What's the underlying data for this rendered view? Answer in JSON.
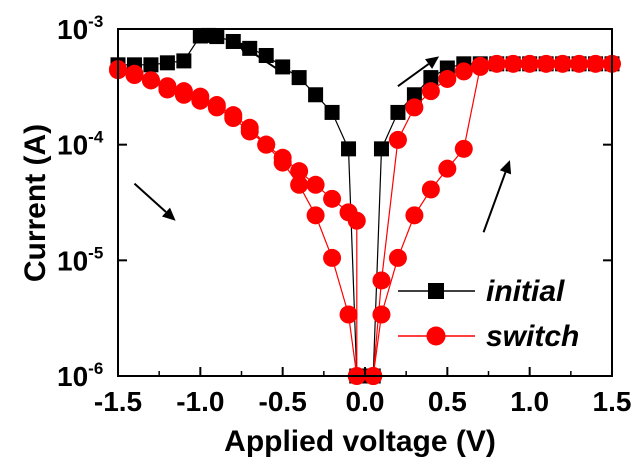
{
  "chart_data": {
    "type": "scatter",
    "xlabel": "Applied voltage (V)",
    "ylabel": "Current (A)",
    "xlim": [
      -1.5,
      1.5
    ],
    "ylim": [
      1e-06,
      0.001
    ],
    "y_scale": "log",
    "x_ticks": [
      "-1.5",
      "-1.0",
      "-0.5",
      "0.0",
      "0.5",
      "1.0",
      "1.5"
    ],
    "y_ticks": [
      {
        "base": "10",
        "exp": "-3"
      },
      {
        "base": "10",
        "exp": "-4"
      },
      {
        "base": "10",
        "exp": "-5"
      },
      {
        "base": "10",
        "exp": "-6"
      }
    ],
    "grid": false,
    "legend_position": "bottom-right",
    "series": [
      {
        "name": "initial",
        "color": "#000000",
        "marker": "square",
        "x": [
          -1.5,
          -1.4,
          -1.3,
          -1.2,
          -1.1,
          -1.0,
          -0.95,
          -0.9,
          -0.8,
          -0.7,
          -0.6,
          -0.5,
          -0.4,
          -0.3,
          -0.2,
          -0.1,
          -0.05,
          0.0,
          0.0,
          0.05,
          0.1,
          0.2,
          0.3,
          0.4,
          0.5,
          0.6,
          0.7,
          0.8,
          0.9,
          1.0,
          1.1,
          1.2,
          1.3,
          1.4,
          1.5
        ],
        "y": [
          0.00049,
          0.00049,
          0.00049,
          0.00051,
          0.00053,
          0.00087,
          0.00088,
          0.00086,
          0.00078,
          0.00068,
          0.00059,
          0.00047,
          0.00038,
          0.00027,
          0.00019,
          9.2e-05,
          1e-06,
          1e-06,
          1e-06,
          1e-06,
          9.2e-05,
          0.00019,
          0.00027,
          0.00038,
          0.00046,
          0.0005,
          0.0005,
          0.0005,
          0.0005,
          0.0005,
          0.0005,
          0.0005,
          0.0005,
          0.0005,
          0.0005
        ]
      },
      {
        "name": "switch",
        "color": "#ff0000",
        "marker": "circle",
        "x": [
          -1.5,
          -1.4,
          -1.3,
          -1.2,
          -1.1,
          -1.0,
          -0.9,
          -0.8,
          -0.7,
          -0.6,
          -0.5,
          -0.4,
          -0.3,
          -0.2,
          -0.1,
          -0.05,
          -0.05,
          -0.1,
          -0.2,
          -0.3,
          -0.4,
          -0.5,
          -0.6,
          -0.7,
          -0.8,
          -0.9,
          -1.0,
          -1.1,
          -1.2,
          -1.3,
          -1.4,
          -1.5
        ],
        "y": [
          0.00045,
          0.00041,
          0.00036,
          0.0003,
          0.00027,
          0.00024,
          0.00021,
          0.00017,
          0.00013,
          0.0001,
          7.7e-05,
          5.9e-05,
          4.5e-05,
          3.4e-05,
          2.6e-05,
          2.2e-05,
          1e-06,
          3.4e-06,
          1.05e-05,
          2.45e-05,
          4.5e-05,
          7e-05,
          0.0001,
          0.00014,
          0.00018,
          0.00022,
          0.00026,
          0.00029,
          0.00032,
          0.00036,
          0.0004,
          0.00044
        ]
      },
      {
        "name": "",
        "color": "#ff0000",
        "marker": "circle",
        "x": [
          0.05,
          0.1,
          0.2,
          0.3,
          0.4,
          0.5,
          0.6,
          0.7,
          0.8,
          0.9,
          1.0,
          1.1,
          1.2,
          1.3,
          1.4,
          1.5
        ],
        "y": [
          1e-06,
          3.4e-06,
          1.05e-05,
          2.45e-05,
          4.1e-05,
          6.2e-05,
          9.2e-05,
          0.00047,
          0.0005,
          0.0005,
          0.0005,
          0.0005,
          0.0005,
          0.0005,
          0.0005,
          0.0005
        ]
      },
      {
        "name": "",
        "color": "#ff0000",
        "marker": "circle",
        "x": [
          0.05,
          0.1,
          0.2,
          0.3,
          0.4,
          0.5,
          0.6,
          0.7
        ],
        "y": [
          1e-06,
          6.7e-06,
          0.00011,
          0.00021,
          0.00029,
          0.00037,
          0.00043,
          0.00048
        ]
      }
    ],
    "legend": [
      {
        "label": "initial",
        "color": "#000000",
        "marker": "square"
      },
      {
        "label": "switch",
        "color": "#ff0000",
        "marker": "circle"
      }
    ],
    "arrows": [
      {
        "from": [
          -0.5,
          0.00042
        ],
        "to": [
          -0.78,
          0.00077
        ]
      },
      {
        "from": [
          0.2,
          0.00032
        ],
        "to": [
          0.45,
          0.00058
        ]
      },
      {
        "from": [
          -1.4,
          4.6e-05
        ],
        "to": [
          -1.15,
          2.2e-05
        ]
      },
      {
        "from": [
          0.72,
          1.75e-05
        ],
        "to": [
          0.88,
          7.35e-05
        ]
      }
    ]
  }
}
